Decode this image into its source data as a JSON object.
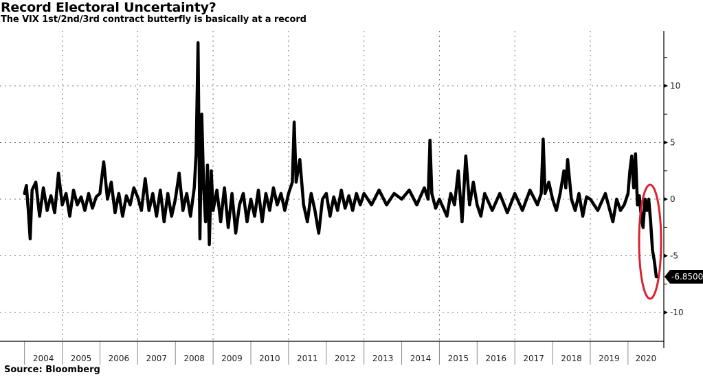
{
  "header": {
    "title": "Record Electoral Uncertainty?",
    "subtitle": "The VIX 1st/2nd/3rd contract butterfly is basically at a record"
  },
  "footer": {
    "source": "Source: Bloomberg"
  },
  "last_value_label": "-6.8500",
  "colors": {
    "line": "#000000",
    "highlight": "#d9232e",
    "grid": "#777777"
  },
  "chart_data": {
    "type": "line",
    "title": "Record Electoral Uncertainty?",
    "subtitle": "The VIX 1st/2nd/3rd contract butterfly is basically at a record",
    "xlabel": "",
    "ylabel": "",
    "x_tick_labels": [
      "2004",
      "2005",
      "2006",
      "2007",
      "2008",
      "2009",
      "2010",
      "2011",
      "2012",
      "2013",
      "2014",
      "2015",
      "2016",
      "2017",
      "2018",
      "2019",
      "2020"
    ],
    "y_ticks": [
      10,
      5,
      0,
      -5,
      -10
    ],
    "ylim": [
      -12.5,
      14.5
    ],
    "grid": true,
    "legend": "none",
    "annotations": [
      {
        "type": "last-value-label",
        "text": "-6.8500",
        "value": -6.85
      },
      {
        "type": "red-ellipse",
        "around": "late 2020 plunge"
      }
    ],
    "series": [
      {
        "name": "VIX 1st/2nd/3rd contract butterfly",
        "x": [
          2004.0,
          2004.05,
          2004.1,
          2004.15,
          2004.2,
          2004.3,
          2004.4,
          2004.5,
          2004.6,
          2004.7,
          2004.8,
          2004.9,
          2005.0,
          2005.1,
          2005.2,
          2005.3,
          2005.4,
          2005.5,
          2005.6,
          2005.7,
          2005.8,
          2005.9,
          2006.0,
          2006.1,
          2006.2,
          2006.3,
          2006.4,
          2006.5,
          2006.6,
          2006.7,
          2006.8,
          2006.9,
          2007.0,
          2007.1,
          2007.2,
          2007.3,
          2007.4,
          2007.5,
          2007.6,
          2007.7,
          2007.8,
          2007.9,
          2008.0,
          2008.1,
          2008.2,
          2008.3,
          2008.4,
          2008.5,
          2008.55,
          2008.6,
          2008.65,
          2008.7,
          2008.75,
          2008.8,
          2008.85,
          2008.9,
          2008.95,
          2009.0,
          2009.1,
          2009.2,
          2009.3,
          2009.4,
          2009.5,
          2009.6,
          2009.7,
          2009.8,
          2009.9,
          2010.0,
          2010.1,
          2010.2,
          2010.3,
          2010.4,
          2010.5,
          2010.6,
          2010.7,
          2010.8,
          2010.9,
          2011.0,
          2011.1,
          2011.15,
          2011.2,
          2011.3,
          2011.4,
          2011.5,
          2011.6,
          2011.7,
          2011.8,
          2011.9,
          2012.0,
          2012.1,
          2012.2,
          2012.3,
          2012.4,
          2012.5,
          2012.6,
          2012.7,
          2012.8,
          2012.9,
          2013.0,
          2013.2,
          2013.4,
          2013.6,
          2013.8,
          2014.0,
          2014.2,
          2014.4,
          2014.6,
          2014.7,
          2014.75,
          2014.8,
          2014.9,
          2015.0,
          2015.2,
          2015.3,
          2015.4,
          2015.5,
          2015.6,
          2015.7,
          2015.8,
          2015.9,
          2016.0,
          2016.1,
          2016.2,
          2016.4,
          2016.6,
          2016.8,
          2017.0,
          2017.2,
          2017.4,
          2017.6,
          2017.7,
          2017.75,
          2017.8,
          2017.9,
          2018.0,
          2018.1,
          2018.2,
          2018.3,
          2018.35,
          2018.4,
          2018.5,
          2018.6,
          2018.7,
          2018.8,
          2018.9,
          2019.0,
          2019.2,
          2019.4,
          2019.6,
          2019.7,
          2019.8,
          2019.9,
          2020.0,
          2020.05,
          2020.1,
          2020.15,
          2020.2,
          2020.25,
          2020.3,
          2020.35,
          2020.4,
          2020.45,
          2020.5,
          2020.55,
          2020.6,
          2020.65,
          2020.7,
          2020.75,
          2020.8
        ],
        "y": [
          0.5,
          1.2,
          -1.0,
          -3.5,
          0.8,
          1.5,
          -1.5,
          1.0,
          -1.0,
          0.3,
          -1.2,
          2.3,
          -0.5,
          0.5,
          -1.5,
          0.8,
          -0.5,
          0.2,
          -1.0,
          0.5,
          -0.8,
          0.2,
          0.5,
          3.3,
          0.0,
          1.5,
          -1.2,
          0.5,
          -1.5,
          0.3,
          -0.5,
          1.0,
          0.2,
          -1.0,
          1.8,
          -1.0,
          0.5,
          -1.5,
          0.8,
          -2.0,
          0.5,
          -1.5,
          0.0,
          2.3,
          -1.0,
          0.5,
          -1.5,
          1.0,
          4.0,
          13.8,
          -3.5,
          7.5,
          1.0,
          -2.0,
          3.0,
          -4.0,
          2.5,
          -1.0,
          0.8,
          -2.0,
          1.0,
          -2.5,
          0.5,
          -3.0,
          -0.5,
          0.5,
          -2.0,
          0.0,
          -1.5,
          0.8,
          -2.0,
          0.5,
          -1.0,
          1.0,
          -0.5,
          0.5,
          -1.0,
          0.5,
          1.5,
          6.8,
          1.5,
          3.5,
          -0.5,
          -2.0,
          0.5,
          -1.0,
          -3.0,
          0.0,
          0.5,
          -1.5,
          0.2,
          -1.0,
          0.8,
          -0.8,
          0.3,
          -1.0,
          0.5,
          -0.5,
          0.5,
          -0.5,
          0.8,
          -0.5,
          0.5,
          0.0,
          0.8,
          -0.5,
          1.0,
          0.0,
          5.2,
          0.5,
          -0.8,
          0.0,
          -1.5,
          0.5,
          -0.5,
          2.5,
          -2.0,
          3.8,
          -0.5,
          1.5,
          -0.5,
          -1.5,
          0.5,
          -1.0,
          0.5,
          -1.2,
          0.5,
          -1.0,
          0.8,
          -0.5,
          0.5,
          5.3,
          0.5,
          1.5,
          0.0,
          -1.0,
          0.5,
          2.5,
          1.0,
          3.5,
          0.0,
          -1.0,
          0.5,
          -1.5,
          0.2,
          0.0,
          -1.0,
          0.5,
          -2.0,
          0.0,
          -1.0,
          -0.5,
          0.5,
          2.5,
          3.8,
          1.0,
          4.0,
          -0.5,
          0.3,
          -1.5,
          -2.5,
          0.0,
          -1.0,
          0.0,
          -2.0,
          -4.5,
          -5.5,
          -6.85,
          -6.85
        ]
      }
    ]
  }
}
